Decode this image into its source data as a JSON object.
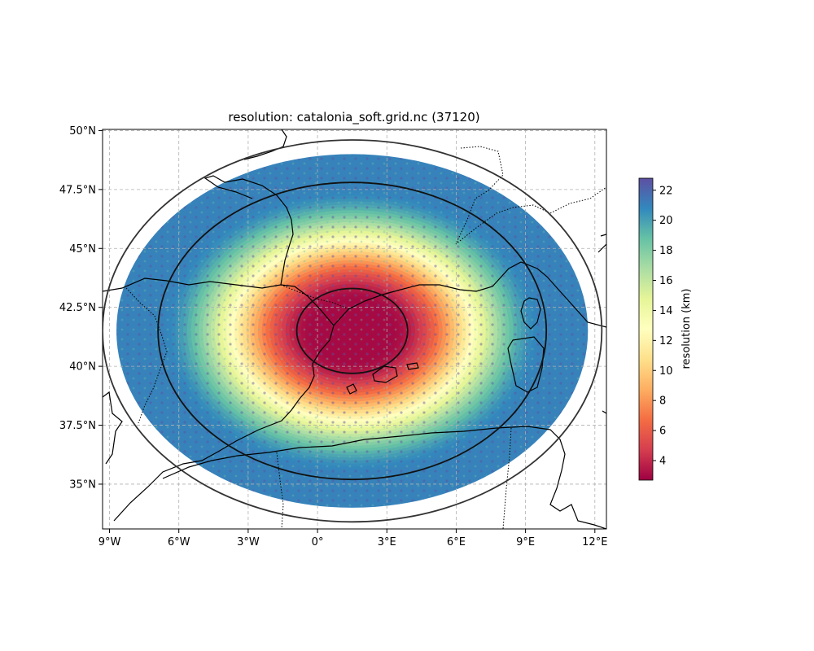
{
  "title": "resolution: catalonia_soft.grid.nc (37120)",
  "map": {
    "lon_range": [
      -9.3,
      12.5
    ],
    "lat_range": [
      33.1,
      50.05
    ],
    "lon_ticks": [
      {
        "value": -9,
        "label": "9°W"
      },
      {
        "value": -6,
        "label": "6°W"
      },
      {
        "value": -3,
        "label": "3°W"
      },
      {
        "value": 0,
        "label": "0°"
      },
      {
        "value": 3,
        "label": "3°E"
      },
      {
        "value": 6,
        "label": "6°E"
      },
      {
        "value": 9,
        "label": "9°E"
      },
      {
        "value": 12,
        "label": "12°E"
      }
    ],
    "lat_ticks": [
      {
        "value": 35,
        "label": "35°N"
      },
      {
        "value": 37.5,
        "label": "37.5°N"
      },
      {
        "value": 40,
        "label": "40°N"
      },
      {
        "value": 42.5,
        "label": "42.5°N"
      },
      {
        "value": 45,
        "label": "45°N"
      },
      {
        "value": 47.5,
        "label": "47.5°N"
      },
      {
        "value": 50,
        "label": "50°N"
      }
    ],
    "grid": true,
    "mesh_center": {
      "lon": 1.5,
      "lat": 41.5
    },
    "reference_circles_deg": [
      {
        "lon_radius": 2.4,
        "lat_radius": 1.8
      },
      {
        "lon_radius": 8.4,
        "lat_radius": 6.3
      },
      {
        "lon_radius": 10.8,
        "lat_radius": 8.1
      }
    ],
    "mesh_extent_deg": {
      "lon_radius": 10.2,
      "lat_radius": 7.5
    }
  },
  "colorbar": {
    "label": "resolution (km)",
    "range": [
      2.7,
      22.8
    ],
    "ticks": [
      {
        "value": 4,
        "label": "4"
      },
      {
        "value": 6,
        "label": "6"
      },
      {
        "value": 8,
        "label": "8"
      },
      {
        "value": 10,
        "label": "10"
      },
      {
        "value": 12,
        "label": "12"
      },
      {
        "value": 14,
        "label": "14"
      },
      {
        "value": 16,
        "label": "16"
      },
      {
        "value": 18,
        "label": "18"
      },
      {
        "value": 20,
        "label": "20"
      },
      {
        "value": 22,
        "label": "22"
      }
    ],
    "colormap": "Spectral",
    "colors": [
      "#9e0142",
      "#d53e4f",
      "#f46d43",
      "#fdae61",
      "#fee08b",
      "#ffffbf",
      "#e6f598",
      "#abdda4",
      "#66c2a5",
      "#3288bd",
      "#5e4fa2"
    ]
  },
  "resolution_profile_km": {
    "inner": 3,
    "outer": 21
  }
}
